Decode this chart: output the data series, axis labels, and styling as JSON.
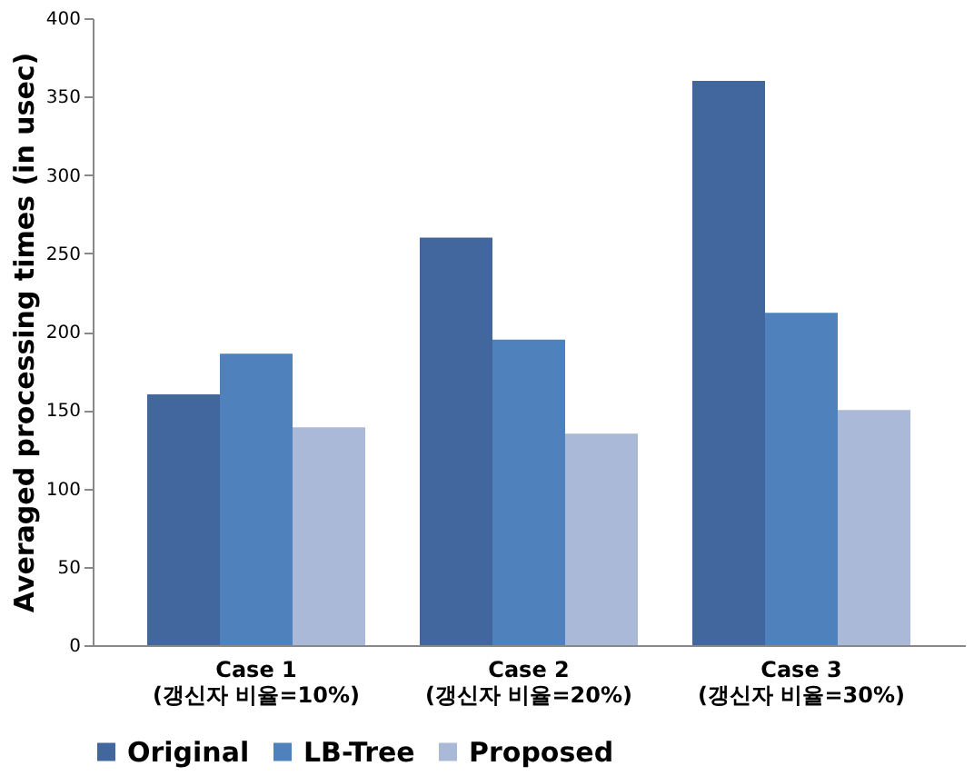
{
  "chart_data": {
    "type": "bar",
    "ylabel": "Averaged processing times (in usec)",
    "categories": [
      "Case 1\n(갱신자 비율=10%)",
      "Case 2\n(갱신자 비율=20%)",
      "Case 3\n(갱신자 비율=30%)"
    ],
    "series": [
      {
        "name": "Original",
        "color": "#41679e",
        "values": [
          160,
          260,
          360
        ]
      },
      {
        "name": "LB-Tree",
        "color": "#4f81bd",
        "values": [
          186,
          195,
          212
        ]
      },
      {
        "name": "Proposed",
        "color": "#aab9d8",
        "values": [
          139,
          135,
          150
        ]
      }
    ],
    "ylim": [
      0,
      400
    ],
    "yticks": [
      0,
      50,
      100,
      150,
      200,
      250,
      300,
      350,
      400
    ],
    "grid": false,
    "legend": "bottom"
  }
}
